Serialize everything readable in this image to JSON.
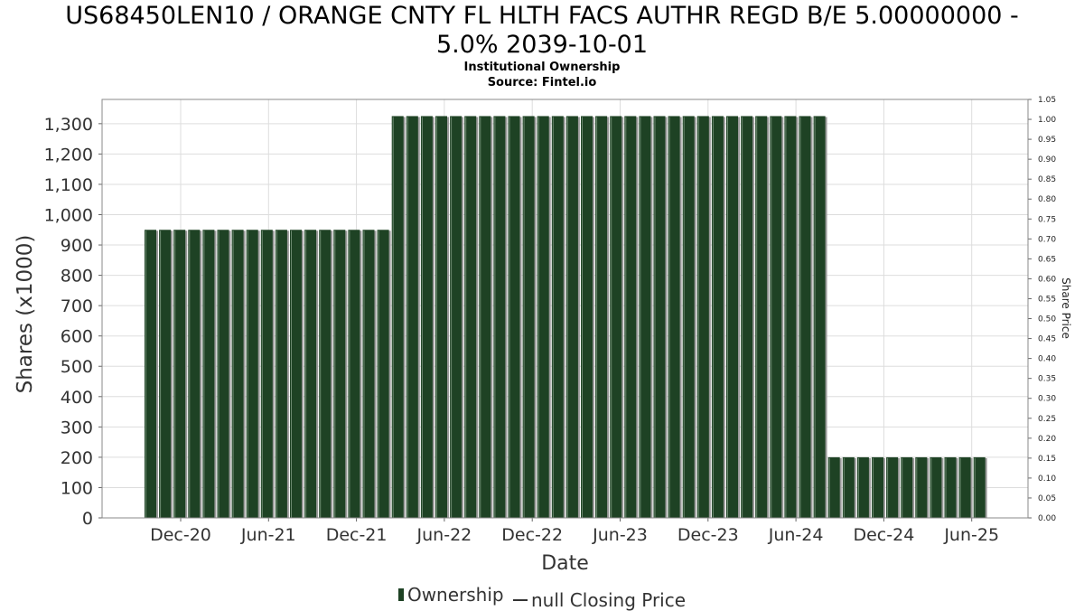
{
  "chart_data": {
    "type": "bar",
    "title_line1": "US68450LEN10 / ORANGE CNTY FL HLTH FACS AUTHR REGD B/E 5.00000000 -",
    "title_line2": "5.0% 2039-10-01",
    "subtitle1": "Institutional Ownership",
    "subtitle2": "Source: Fintel.io",
    "xlabel": "Date",
    "ylabel": "Shares (x1000)",
    "y2label": "Share Price",
    "ylim": [
      0,
      1380
    ],
    "y2lim": [
      0,
      1.05
    ],
    "yticks": [
      0,
      100,
      200,
      300,
      400,
      500,
      600,
      700,
      800,
      900,
      1000,
      1100,
      1200,
      1300
    ],
    "ytick_labels": [
      "0",
      "100",
      "200",
      "300",
      "400",
      "500",
      "600",
      "700",
      "800",
      "900",
      "1,000",
      "1,100",
      "1,200",
      "1,300"
    ],
    "y2ticks": [
      "0.00",
      "0.05",
      "0.10",
      "0.15",
      "0.20",
      "0.25",
      "0.30",
      "0.35",
      "0.40",
      "0.45",
      "0.50",
      "0.55",
      "0.60",
      "0.65",
      "0.70",
      "0.75",
      "0.80",
      "0.85",
      "0.90",
      "0.95",
      "1.00",
      "1.05"
    ],
    "xtick_labels": [
      "Dec-20",
      "Jun-21",
      "Dec-21",
      "Jun-22",
      "Dec-22",
      "Jun-23",
      "Dec-23",
      "Jun-24",
      "Dec-24",
      "Jun-25"
    ],
    "grid": true,
    "legend_position": "bottom",
    "bar_color": "#1e4224",
    "series": [
      {
        "name": "Ownership",
        "values": [
          950,
          950,
          950,
          950,
          950,
          950,
          950,
          950,
          950,
          950,
          950,
          950,
          950,
          950,
          950,
          950,
          950,
          1325,
          1325,
          1325,
          1325,
          1325,
          1325,
          1325,
          1325,
          1325,
          1325,
          1325,
          1325,
          1325,
          1325,
          1325,
          1325,
          1325,
          1325,
          1325,
          1325,
          1325,
          1325,
          1325,
          1325,
          1325,
          1325,
          1325,
          1325,
          1325,
          1325,
          200,
          200,
          200,
          200,
          200,
          200,
          200,
          200,
          200,
          200,
          200
        ]
      }
    ],
    "legend": [
      "Ownership",
      "null Closing Price"
    ]
  }
}
